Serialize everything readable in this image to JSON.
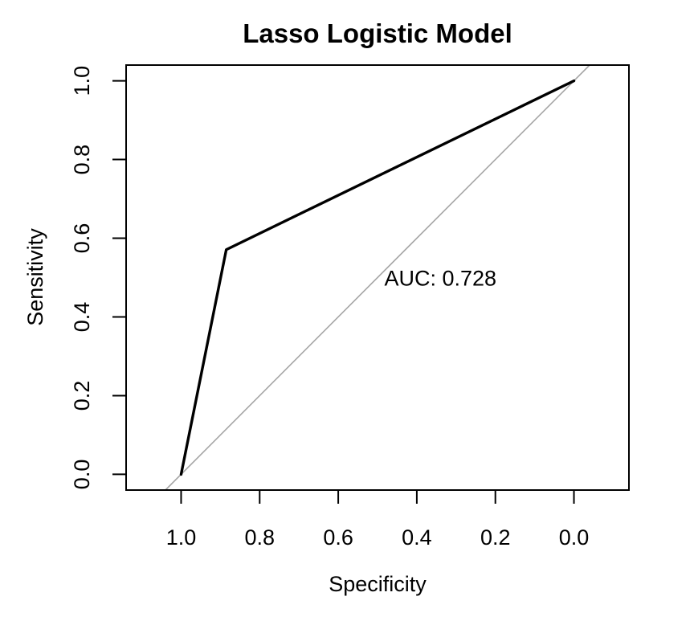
{
  "chart_data": {
    "type": "line",
    "title": "Lasso Logistic Model",
    "xlabel": "Specificity",
    "ylabel": "Sensitivity",
    "x_reversed": true,
    "xlim": [
      1.14,
      -0.14
    ],
    "ylim": [
      -0.04,
      1.04
    ],
    "xticks": [
      1.0,
      0.8,
      0.6,
      0.4,
      0.2,
      0.0
    ],
    "xtick_labels": [
      "1.0",
      "0.8",
      "0.6",
      "0.4",
      "0.2",
      "0.0"
    ],
    "yticks": [
      0.0,
      0.2,
      0.4,
      0.6,
      0.8,
      1.0
    ],
    "ytick_labels": [
      "0.0",
      "0.2",
      "0.4",
      "0.6",
      "0.8",
      "1.0"
    ],
    "grid": false,
    "series": [
      {
        "points": [
          {
            "x": 1.0,
            "y": 0.0
          },
          {
            "x": 0.885,
            "y": 0.571
          },
          {
            "x": 0.0,
            "y": 1.0
          }
        ],
        "color": "#000000"
      }
    ],
    "reference_line": {
      "intercept": 1,
      "slope": -1,
      "color": "#a6a6a6"
    },
    "annotation": {
      "text": "AUC: 0.728",
      "x": 0.34,
      "y": 0.48
    }
  }
}
